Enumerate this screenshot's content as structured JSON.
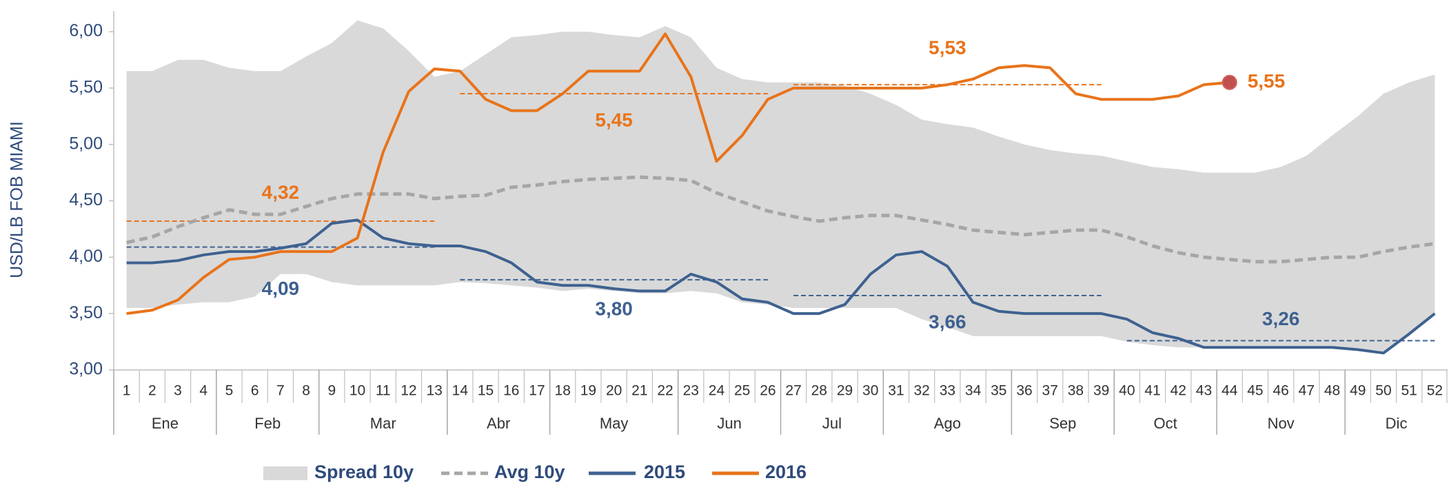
{
  "chart_data": {
    "type": "line",
    "y_label": "USD/LB FOB MIAMI",
    "categories": [
      "1",
      "2",
      "3",
      "4",
      "5",
      "6",
      "7",
      "8",
      "9",
      "10",
      "11",
      "12",
      "13",
      "14",
      "15",
      "16",
      "17",
      "18",
      "19",
      "20",
      "21",
      "22",
      "23",
      "24",
      "25",
      "26",
      "27",
      "28",
      "29",
      "30",
      "31",
      "32",
      "33",
      "34",
      "35",
      "36",
      "37",
      "38",
      "39",
      "40",
      "41",
      "42",
      "43",
      "44",
      "45",
      "46",
      "47",
      "48",
      "49",
      "50",
      "51",
      "52"
    ],
    "month_groups": [
      {
        "label": "Ene",
        "first": 1,
        "last": 4
      },
      {
        "label": "Feb",
        "first": 5,
        "last": 8
      },
      {
        "label": "Mar",
        "first": 9,
        "last": 13
      },
      {
        "label": "Abr",
        "first": 14,
        "last": 17
      },
      {
        "label": "May",
        "first": 18,
        "last": 22
      },
      {
        "label": "Jun",
        "first": 23,
        "last": 26
      },
      {
        "label": "Jul",
        "first": 27,
        "last": 30
      },
      {
        "label": "Ago",
        "first": 31,
        "last": 35
      },
      {
        "label": "Sep",
        "first": 36,
        "last": 39
      },
      {
        "label": "Oct",
        "first": 40,
        "last": 43
      },
      {
        "label": "Nov",
        "first": 44,
        "last": 48
      },
      {
        "label": "Dic",
        "first": 49,
        "last": 52
      }
    ],
    "ylim": [
      3,
      6
    ],
    "yticks": [
      {
        "value": 3,
        "label": "3,00"
      },
      {
        "value": 3.5,
        "label": "3,50"
      },
      {
        "value": 4,
        "label": "4,00"
      },
      {
        "value": 4.5,
        "label": "4,50"
      },
      {
        "value": 5,
        "label": "5,00"
      },
      {
        "value": 5.5,
        "label": "5,50"
      },
      {
        "value": 6,
        "label": "6,00"
      }
    ],
    "grid": false,
    "series": [
      {
        "name": "Spread 10y",
        "kind": "band",
        "color": "#d9d9d9",
        "high": [
          5.65,
          5.65,
          5.75,
          5.75,
          5.68,
          5.65,
          5.65,
          5.78,
          5.9,
          6.1,
          6.03,
          5.83,
          5.6,
          5.65,
          5.8,
          5.95,
          5.97,
          6.0,
          6.0,
          5.97,
          5.95,
          6.05,
          5.95,
          5.68,
          5.58,
          5.55,
          5.55,
          5.55,
          5.52,
          5.45,
          5.35,
          5.22,
          5.18,
          5.15,
          5.07,
          5.0,
          4.95,
          4.92,
          4.9,
          4.85,
          4.8,
          4.78,
          4.75,
          4.75,
          4.75,
          4.8,
          4.9,
          5.08,
          5.25,
          5.45,
          5.55,
          5.62
        ],
        "low": [
          3.55,
          3.55,
          3.58,
          3.6,
          3.6,
          3.65,
          3.85,
          3.85,
          3.78,
          3.75,
          3.75,
          3.75,
          3.75,
          3.78,
          3.77,
          3.75,
          3.73,
          3.7,
          3.72,
          3.7,
          3.68,
          3.68,
          3.7,
          3.68,
          3.6,
          3.58,
          3.55,
          3.55,
          3.55,
          3.55,
          3.55,
          3.45,
          3.38,
          3.3,
          3.3,
          3.3,
          3.3,
          3.3,
          3.3,
          3.25,
          3.22,
          3.2,
          3.2,
          3.2,
          3.2,
          3.2,
          3.2,
          3.2,
          3.18,
          3.15,
          3.3,
          3.5
        ]
      },
      {
        "name": "Avg 10y",
        "kind": "line",
        "dashed": true,
        "color": "#a6a6a6",
        "values": [
          4.13,
          4.18,
          4.27,
          4.35,
          4.42,
          4.38,
          4.38,
          4.45,
          4.52,
          4.56,
          4.56,
          4.56,
          4.52,
          4.54,
          4.55,
          4.62,
          4.64,
          4.67,
          4.69,
          4.7,
          4.71,
          4.7,
          4.68,
          4.57,
          4.49,
          4.41,
          4.36,
          4.32,
          4.35,
          4.37,
          4.37,
          4.33,
          4.29,
          4.24,
          4.22,
          4.2,
          4.22,
          4.24,
          4.24,
          4.18,
          4.1,
          4.04,
          4.0,
          3.98,
          3.96,
          3.96,
          3.98,
          4.0,
          4.0,
          4.05,
          4.09,
          4.12
        ]
      },
      {
        "name": "2015",
        "kind": "line",
        "dashed": false,
        "color": "#3e6190",
        "values": [
          3.95,
          3.95,
          3.97,
          4.02,
          4.05,
          4.05,
          4.08,
          4.12,
          4.3,
          4.33,
          4.17,
          4.12,
          4.1,
          4.1,
          4.05,
          3.95,
          3.78,
          3.75,
          3.75,
          3.72,
          3.7,
          3.7,
          3.85,
          3.78,
          3.63,
          3.6,
          3.5,
          3.5,
          3.58,
          3.85,
          4.02,
          4.05,
          3.92,
          3.6,
          3.52,
          3.5,
          3.5,
          3.5,
          3.5,
          3.45,
          3.33,
          3.28,
          3.2,
          3.2,
          3.2,
          3.2,
          3.2,
          3.2,
          3.18,
          3.15,
          3.32,
          3.5
        ]
      },
      {
        "name": "2016",
        "kind": "line",
        "dashed": false,
        "color": "#e8731a",
        "values": [
          3.5,
          3.53,
          3.62,
          3.82,
          3.98,
          4.0,
          4.05,
          4.05,
          4.05,
          4.17,
          4.93,
          5.47,
          5.67,
          5.65,
          5.4,
          5.3,
          5.3,
          5.45,
          5.65,
          5.65,
          5.65,
          5.98,
          5.6,
          4.85,
          5.08,
          5.4,
          5.5,
          5.5,
          5.5,
          5.5,
          5.5,
          5.5,
          5.53,
          5.58,
          5.68,
          5.7,
          5.68,
          5.45,
          5.4,
          5.4,
          5.4,
          5.43,
          5.53,
          5.55,
          null,
          null,
          null,
          null,
          null,
          null,
          null,
          null
        ]
      }
    ],
    "reference_lines": [
      {
        "color": "#e8731a",
        "first": 1,
        "last": 13,
        "value": 4.32,
        "label": "4,32"
      },
      {
        "color": "#e8731a",
        "first": 14,
        "last": 26,
        "value": 5.45,
        "label": "5,45"
      },
      {
        "color": "#e8731a",
        "first": 27,
        "last": 39,
        "value": 5.53,
        "label": "5,53"
      },
      {
        "color": "#3e6190",
        "first": 1,
        "last": 13,
        "value": 4.09,
        "label": "4,09"
      },
      {
        "color": "#3e6190",
        "first": 14,
        "last": 26,
        "value": 3.8,
        "label": "3,80"
      },
      {
        "color": "#3e6190",
        "first": 27,
        "last": 39,
        "value": 3.66,
        "label": "3,66"
      },
      {
        "color": "#3e6190",
        "first": 40,
        "last": 52,
        "value": 3.26,
        "label": "3,26"
      }
    ],
    "highlight": {
      "series": 3,
      "index": 43,
      "label": "5,55",
      "color": "#c0504d"
    }
  }
}
